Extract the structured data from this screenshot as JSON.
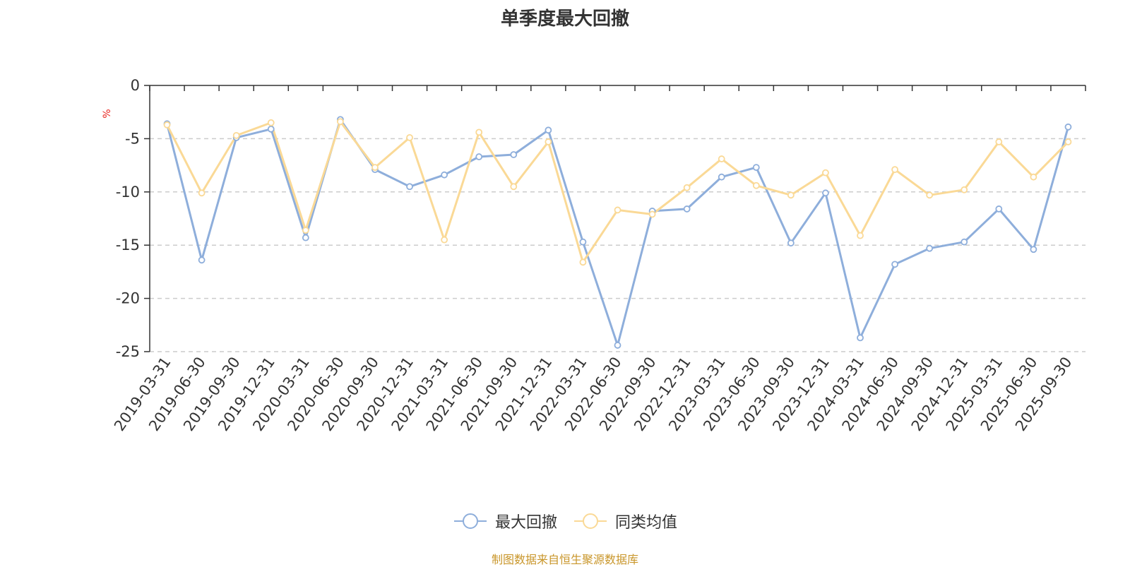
{
  "chart_data": {
    "type": "line",
    "title": "单季度最大回撤",
    "ylabel": "%",
    "ylim": [
      -25,
      0
    ],
    "yticks": [
      0,
      -5,
      -10,
      -15,
      -20,
      -25
    ],
    "grid": true,
    "legend_position": "bottom-center",
    "categories": [
      "2019-03-31",
      "2019-06-30",
      "2019-09-30",
      "2019-12-31",
      "2020-03-31",
      "2020-06-30",
      "2020-09-30",
      "2020-12-31",
      "2021-03-31",
      "2021-06-30",
      "2021-09-30",
      "2021-12-31",
      "2022-03-31",
      "2022-06-30",
      "2022-09-30",
      "2022-12-31",
      "2023-03-31",
      "2023-06-30",
      "2023-09-30",
      "2023-12-31",
      "2024-03-31",
      "2024-06-30",
      "2024-09-30",
      "2024-12-31",
      "2025-03-31",
      "2025-06-30",
      "2025-09-30"
    ],
    "series": [
      {
        "name": "最大回撤",
        "color": "#8eaedb",
        "values": [
          -3.6,
          -16.4,
          -4.9,
          -4.1,
          -14.3,
          -3.2,
          -7.9,
          -9.5,
          -8.4,
          -6.7,
          -6.5,
          -4.2,
          -14.7,
          -24.4,
          -11.8,
          -11.6,
          -8.6,
          -7.7,
          -14.8,
          -10.1,
          -23.7,
          -16.8,
          -15.3,
          -14.7,
          -11.6,
          -15.4,
          -3.9
        ]
      },
      {
        "name": "同类均值",
        "color": "#fad996",
        "values": [
          -3.7,
          -10.1,
          -4.7,
          -3.5,
          -13.6,
          -3.4,
          -7.7,
          -4.9,
          -14.5,
          -4.4,
          -9.5,
          -5.3,
          -16.6,
          -11.7,
          -12.1,
          -9.6,
          -6.9,
          -9.4,
          -10.3,
          -8.2,
          -14.1,
          -7.9,
          -10.3,
          -9.8,
          -5.3,
          -8.6,
          -5.3
        ]
      }
    ]
  },
  "source_note": "制图数据来自恒生聚源数据库"
}
